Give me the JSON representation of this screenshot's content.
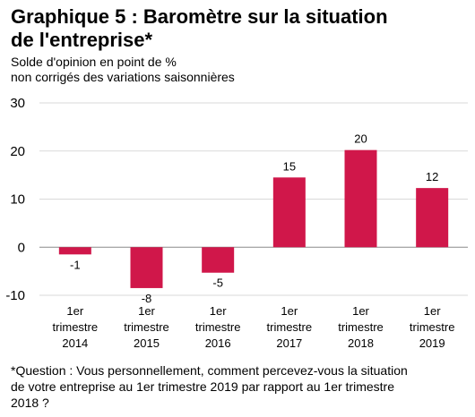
{
  "chart_data": {
    "type": "bar",
    "title_line1": "Graphique 5 : Baromètre sur la situation",
    "title_line2": "de l'entreprise*",
    "subtitle_line1": "Solde d'opinion en point de %",
    "subtitle_line2": "non corrigés des variations saisonnières",
    "categories": [
      [
        "1er",
        "trimestre",
        "2014"
      ],
      [
        "1er",
        "trimestre",
        "2015"
      ],
      [
        "1er",
        "trimestre",
        "2016"
      ],
      [
        "1er",
        "trimestre",
        "2017"
      ],
      [
        "1er",
        "trimestre",
        "2018"
      ],
      [
        "1er",
        "trimestre",
        "2019"
      ]
    ],
    "values": [
      -1.5,
      -8.5,
      -5.3,
      14.5,
      20.2,
      12.3
    ],
    "data_labels": [
      "-1",
      "-8",
      "-5",
      "15",
      "20",
      "12"
    ],
    "yticks": [
      "30",
      "20",
      "10",
      "0",
      "-10"
    ],
    "ytick_values": [
      30,
      20,
      10,
      0,
      -10
    ],
    "ylim": [
      -10,
      30
    ],
    "grid": true,
    "legend": "none",
    "bar_color": "#d0174a",
    "footnote_line1": "*Question : Vous personnellement, comment percevez-vous  la situation",
    "footnote_line2": "de votre entreprise au 1er trimestre 2019 par rapport au 1er trimestre",
    "footnote_line3": "2018 ?"
  }
}
